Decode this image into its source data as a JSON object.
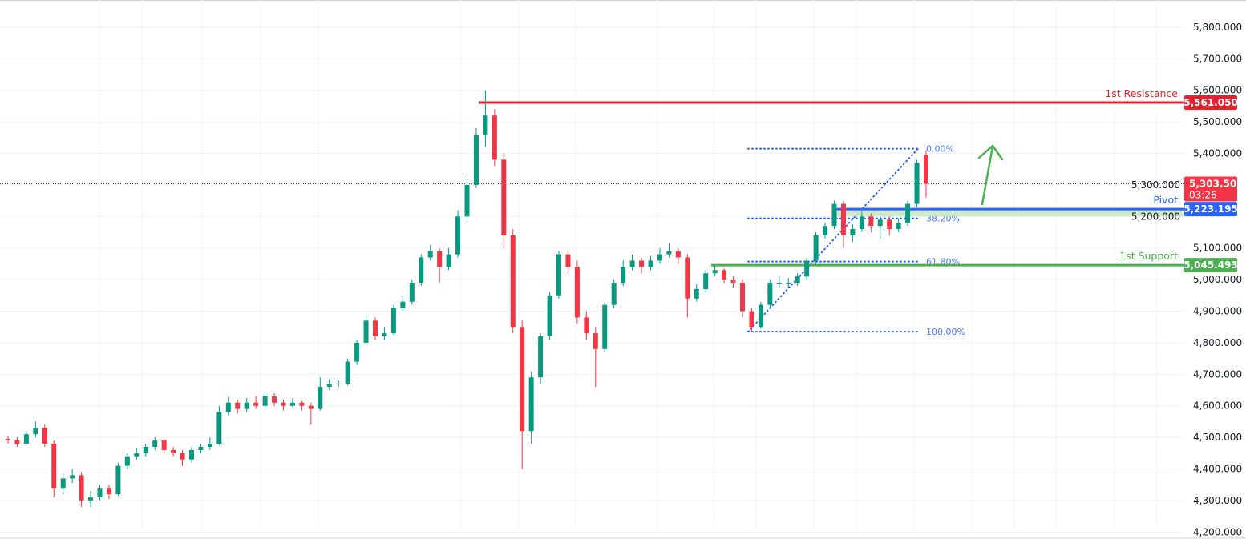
{
  "chart_data": {
    "type": "candlestick",
    "ylim": [
      4211,
      5886
    ],
    "y_ticks": [
      "5,800.000",
      "5,700.000",
      "5,600.000",
      "5,500.000",
      "5,400.000",
      "5,300.000",
      "5,200.000",
      "5,100.000",
      "5,000.000",
      "4,900.000",
      "4,800.000",
      "4,700.000",
      "4,600.000",
      "4,500.000",
      "4,400.000",
      "4,300.000",
      "4,200.000"
    ],
    "y_tick_values": [
      5800,
      5700,
      5600,
      5500,
      5400,
      5300,
      5200,
      5100,
      5000,
      4900,
      4800,
      4700,
      4600,
      4500,
      4400,
      4300,
      4200
    ],
    "grid": true,
    "colors": {
      "up": "#089981",
      "down": "#f23645",
      "resistance": "#e3202e",
      "pivot": "#2962ff",
      "support": "#4caf50",
      "fib": "#2962ff",
      "arrow": "#4caf50",
      "zone": "#c8e6c0"
    },
    "candles_ohlc": [
      [
        4495,
        4505,
        4480,
        4490
      ],
      [
        4490,
        4500,
        4470,
        4480
      ],
      [
        4480,
        4520,
        4475,
        4510
      ],
      [
        4510,
        4550,
        4500,
        4530
      ],
      [
        4530,
        4540,
        4470,
        4480
      ],
      [
        4480,
        4490,
        4310,
        4340
      ],
      [
        4340,
        4385,
        4320,
        4370
      ],
      [
        4370,
        4400,
        4355,
        4380
      ],
      [
        4380,
        4390,
        4280,
        4300
      ],
      [
        4300,
        4330,
        4280,
        4310
      ],
      [
        4310,
        4350,
        4300,
        4340
      ],
      [
        4340,
        4350,
        4305,
        4320
      ],
      [
        4320,
        4420,
        4315,
        4410
      ],
      [
        4410,
        4450,
        4400,
        4440
      ],
      [
        4440,
        4465,
        4430,
        4450
      ],
      [
        4450,
        4480,
        4440,
        4470
      ],
      [
        4470,
        4500,
        4460,
        4490
      ],
      [
        4490,
        4495,
        4450,
        4460
      ],
      [
        4460,
        4470,
        4440,
        4450
      ],
      [
        4450,
        4460,
        4410,
        4430
      ],
      [
        4430,
        4470,
        4420,
        4460
      ],
      [
        4460,
        4480,
        4450,
        4470
      ],
      [
        4470,
        4500,
        4460,
        4480
      ],
      [
        4480,
        4600,
        4475,
        4580
      ],
      [
        4580,
        4630,
        4570,
        4610
      ],
      [
        4610,
        4620,
        4575,
        4590
      ],
      [
        4590,
        4625,
        4580,
        4610
      ],
      [
        4610,
        4630,
        4590,
        4600
      ],
      [
        4600,
        4645,
        4595,
        4630
      ],
      [
        4630,
        4640,
        4600,
        4610
      ],
      [
        4610,
        4620,
        4585,
        4600
      ],
      [
        4600,
        4625,
        4595,
        4610
      ],
      [
        4610,
        4615,
        4585,
        4600
      ],
      [
        4600,
        4610,
        4540,
        4590
      ],
      [
        4590,
        4690,
        4585,
        4660
      ],
      [
        4660,
        4685,
        4650,
        4670
      ],
      [
        4670,
        4680,
        4660,
        4670
      ],
      [
        4670,
        4750,
        4665,
        4740
      ],
      [
        4740,
        4810,
        4730,
        4800
      ],
      [
        4800,
        4890,
        4795,
        4870
      ],
      [
        4870,
        4880,
        4810,
        4820
      ],
      [
        4820,
        4850,
        4810,
        4830
      ],
      [
        4830,
        4920,
        4825,
        4910
      ],
      [
        4910,
        4950,
        4900,
        4930
      ],
      [
        4930,
        5000,
        4920,
        4990
      ],
      [
        4990,
        5080,
        4980,
        5070
      ],
      [
        5070,
        5110,
        5060,
        5090
      ],
      [
        5090,
        5100,
        4990,
        5040
      ],
      [
        5040,
        5100,
        5030,
        5080
      ],
      [
        5080,
        5220,
        5070,
        5200
      ],
      [
        5200,
        5320,
        5190,
        5300
      ],
      [
        5300,
        5480,
        5290,
        5460
      ],
      [
        5460,
        5600,
        5420,
        5520
      ],
      [
        5520,
        5540,
        5360,
        5380
      ],
      [
        5380,
        5400,
        5100,
        5140
      ],
      [
        5140,
        5160,
        4830,
        4850
      ],
      [
        4850,
        4870,
        4400,
        4520
      ],
      [
        4520,
        4710,
        4480,
        4690
      ],
      [
        4690,
        4830,
        4670,
        4820
      ],
      [
        4820,
        4960,
        4810,
        4950
      ],
      [
        4950,
        5090,
        4940,
        5080
      ],
      [
        5080,
        5090,
        5020,
        5040
      ],
      [
        5040,
        5060,
        4860,
        4880
      ],
      [
        4880,
        4900,
        4810,
        4830
      ],
      [
        4830,
        4850,
        4660,
        4780
      ],
      [
        4780,
        4930,
        4770,
        4920
      ],
      [
        4920,
        5000,
        4910,
        4990
      ],
      [
        4990,
        5060,
        4980,
        5040
      ],
      [
        5040,
        5080,
        5030,
        5060
      ],
      [
        5060,
        5070,
        5020,
        5040
      ],
      [
        5040,
        5075,
        5030,
        5060
      ],
      [
        5060,
        5100,
        5050,
        5080
      ],
      [
        5080,
        5115,
        5070,
        5090
      ],
      [
        5090,
        5100,
        5050,
        5070
      ],
      [
        5070,
        5080,
        4880,
        4940
      ],
      [
        4940,
        4985,
        4930,
        4970
      ],
      [
        4970,
        5030,
        4960,
        5020
      ],
      [
        5020,
        5045,
        5010,
        5030
      ],
      [
        5030,
        5035,
        4990,
        5000
      ],
      [
        5000,
        5010,
        4975,
        4990
      ],
      [
        4990,
        5000,
        4880,
        4900
      ],
      [
        4900,
        4910,
        4835,
        4850
      ],
      [
        4850,
        4930,
        4845,
        4920
      ],
      [
        4920,
        5000,
        4910,
        4990
      ],
      [
        4990,
        5010,
        4975,
        4990
      ],
      [
        4990,
        5005,
        4975,
        4990
      ],
      [
        4990,
        5020,
        4980,
        5010
      ],
      [
        5010,
        5070,
        5000,
        5060
      ],
      [
        5060,
        5150,
        5050,
        5140
      ],
      [
        5140,
        5180,
        5130,
        5170
      ],
      [
        5170,
        5250,
        5160,
        5240
      ],
      [
        5240,
        5250,
        5100,
        5140
      ],
      [
        5140,
        5175,
        5120,
        5160
      ],
      [
        5160,
        5215,
        5150,
        5200
      ],
      [
        5200,
        5210,
        5150,
        5170
      ],
      [
        5170,
        5200,
        5130,
        5190
      ],
      [
        5190,
        5200,
        5140,
        5160
      ],
      [
        5160,
        5195,
        5150,
        5180
      ],
      [
        5180,
        5250,
        5170,
        5240
      ],
      [
        5240,
        5380,
        5230,
        5370
      ],
      [
        5395,
        5410,
        5260,
        5303.505
      ]
    ],
    "levels": [
      {
        "name": "1st Resistance",
        "value": 5561.05,
        "value_label": "5,561.050"
      },
      {
        "name": "Pivot",
        "value": 5223.195,
        "value_label": "5,223.195",
        "zone_low": 5200
      },
      {
        "name": "1st Support",
        "value": 5045.493,
        "value_label": "5,045.493"
      }
    ],
    "fibonacci": {
      "high": 5415,
      "low": 4835,
      "levels": [
        {
          "label": "0.00%",
          "value": 5415
        },
        {
          "label": "38.20%",
          "value": 5194
        },
        {
          "label": "61.80%",
          "value": 5057
        },
        {
          "label": "100.00%",
          "value": 4835
        }
      ]
    },
    "current_price": {
      "value": 5303.505,
      "label": "5,303.505",
      "countdown": "03:26"
    },
    "annotation": "green-up-arrow"
  }
}
